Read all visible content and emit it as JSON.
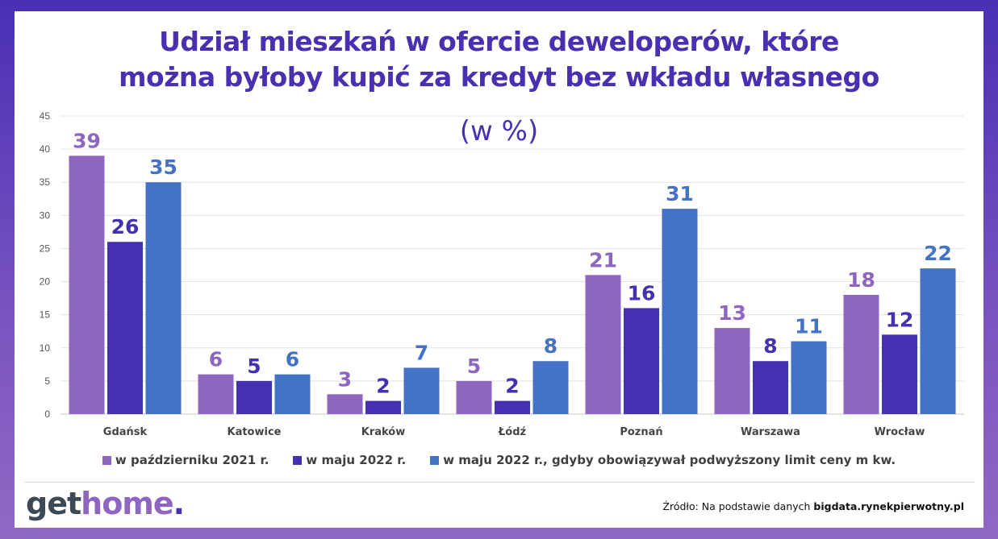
{
  "chart_data": {
    "type": "bar",
    "title": "Udział mieszkań w ofercie deweloperów, które można byłoby kupić za kredyt bez wkładu własnego",
    "title_lines": [
      "Udział mieszkań w ofercie deweloperów, które",
      "można byłoby kupić za kredyt bez wkładu własnego"
    ],
    "subtitle": "(w %)",
    "categories": [
      "Gdańsk",
      "Katowice",
      "Kraków",
      "Łódź",
      "Poznań",
      "Warszawa",
      "Wrocław"
    ],
    "series": [
      {
        "name": "w październiku 2021 r.",
        "color": "#8e66c0",
        "values": [
          39,
          6,
          3,
          5,
          21,
          13,
          18
        ]
      },
      {
        "name": "w maju 2022 r.",
        "color": "#4331b2",
        "values": [
          26,
          5,
          2,
          2,
          16,
          8,
          12
        ]
      },
      {
        "name": "w maju 2022 r., gdyby obowiązywał podwyższony limit ceny m kw.",
        "color": "#4472c4",
        "values": [
          35,
          6,
          7,
          8,
          31,
          11,
          22
        ]
      }
    ],
    "ylim": [
      0,
      45
    ],
    "yticks": [
      0,
      5,
      10,
      15,
      20,
      25,
      30,
      35,
      40,
      45
    ],
    "grid": true,
    "legend": "bottom"
  },
  "footer": {
    "logo_part1": "get",
    "logo_part2": "home",
    "logo_part3": ".",
    "source_prefix": "Źródło: Na podstawie danych ",
    "source_bold": "bigdata.rynekpierwotny.pl"
  }
}
